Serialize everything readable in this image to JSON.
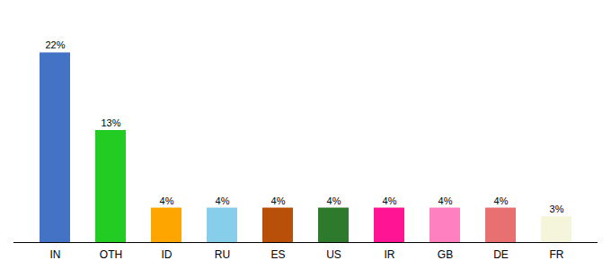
{
  "chart_data": {
    "type": "bar",
    "categories": [
      "IN",
      "OTH",
      "ID",
      "RU",
      "ES",
      "US",
      "IR",
      "GB",
      "DE",
      "FR"
    ],
    "values": [
      22,
      13,
      4,
      4,
      4,
      4,
      4,
      4,
      4,
      3
    ],
    "value_labels": [
      "22%",
      "13%",
      "4%",
      "4%",
      "4%",
      "4%",
      "4%",
      "4%",
      "4%",
      "3%"
    ],
    "colors": [
      "#4472C4",
      "#22CC22",
      "#FFA500",
      "#87CEEB",
      "#B8500A",
      "#2D7A2D",
      "#FF1493",
      "#FF80C0",
      "#E87070",
      "#F5F5DC"
    ],
    "ylim": [
      0,
      26
    ],
    "data_labels": true,
    "tick_labels": "x",
    "grid": false
  }
}
